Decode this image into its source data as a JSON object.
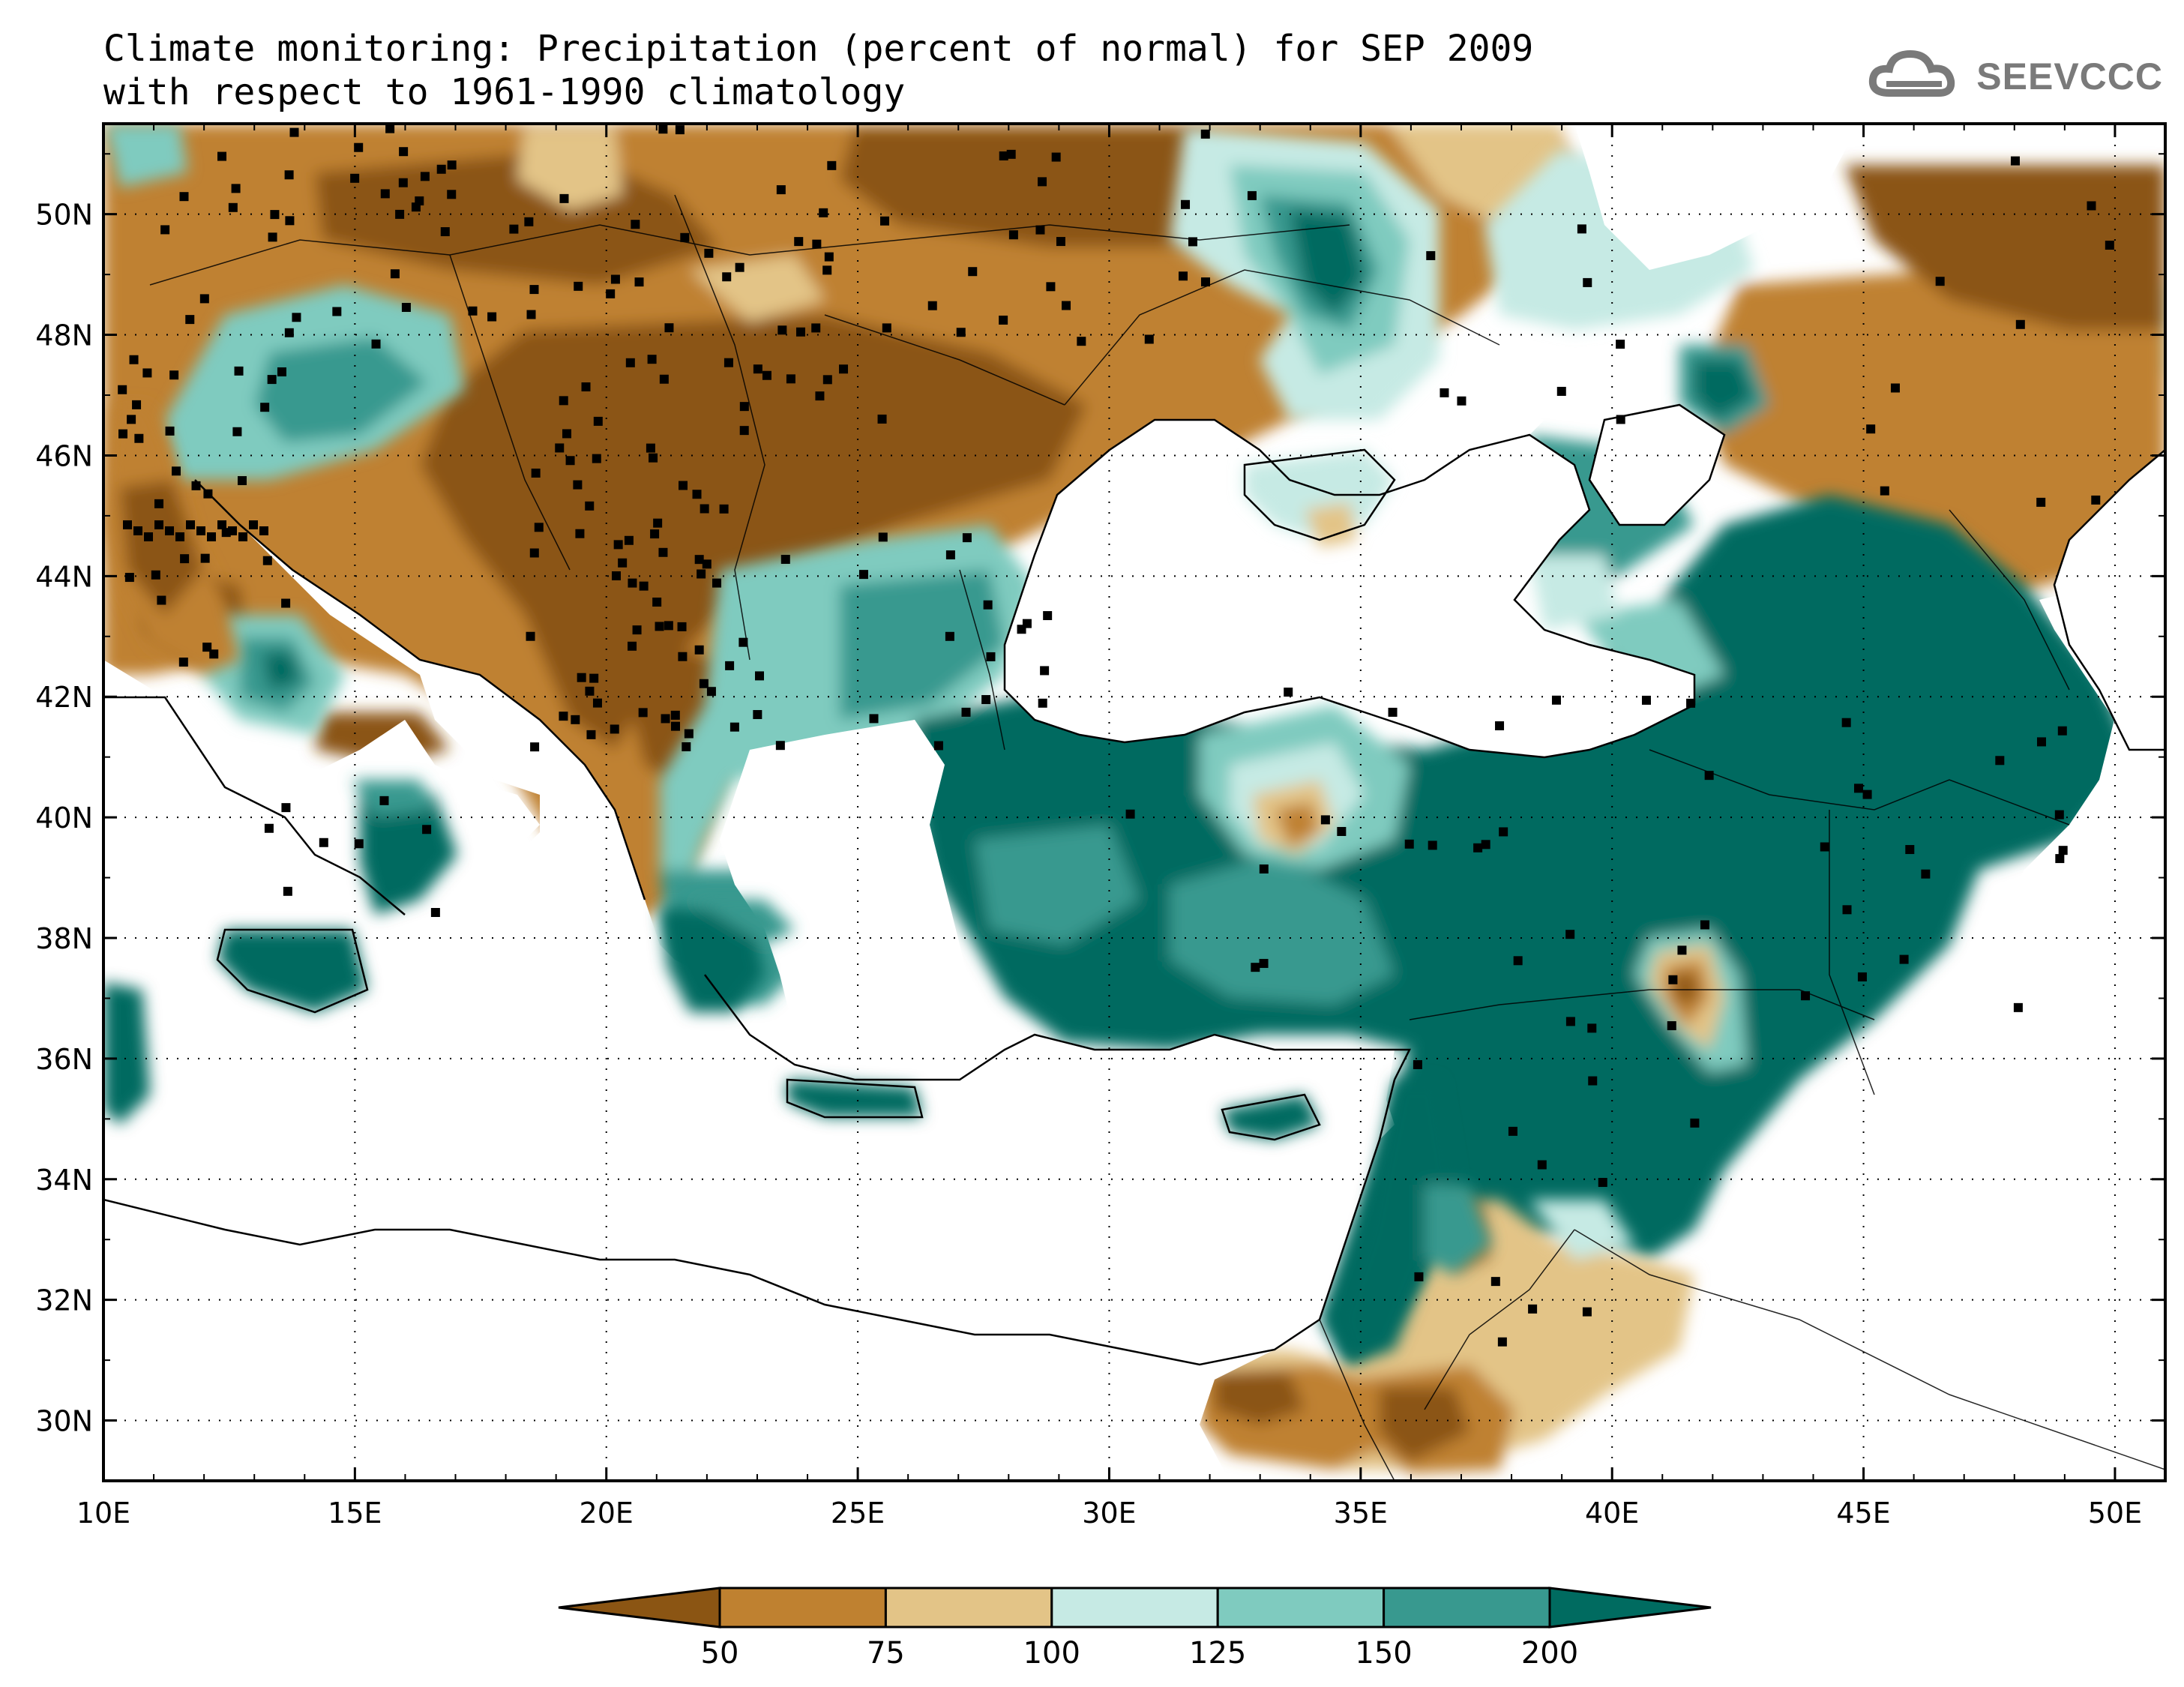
{
  "title": {
    "line1": "Climate monitoring: Precipitation (percent of normal) for SEP 2009",
    "line2": "with respect to 1961-1990 climatology"
  },
  "logo": {
    "text": "SEEVCCC",
    "icon": "cloud-icon"
  },
  "map": {
    "lon_range": [
      10,
      51
    ],
    "lat_range": [
      29,
      51.5
    ],
    "lat_ticks": [
      "30N",
      "32N",
      "34N",
      "36N",
      "38N",
      "40N",
      "42N",
      "44N",
      "46N",
      "48N",
      "50N"
    ],
    "lon_ticks": [
      "10E",
      "15E",
      "20E",
      "25E",
      "30E",
      "35E",
      "40E",
      "45E",
      "50E"
    ]
  },
  "legend": {
    "labels": [
      "50",
      "75",
      "100",
      "125",
      "150",
      "200"
    ],
    "colors": [
      "#8b5513",
      "#bf8130",
      "#e3c487",
      "#c6eae4",
      "#7fcbbf",
      "#38998f",
      "#006b60"
    ]
  }
}
